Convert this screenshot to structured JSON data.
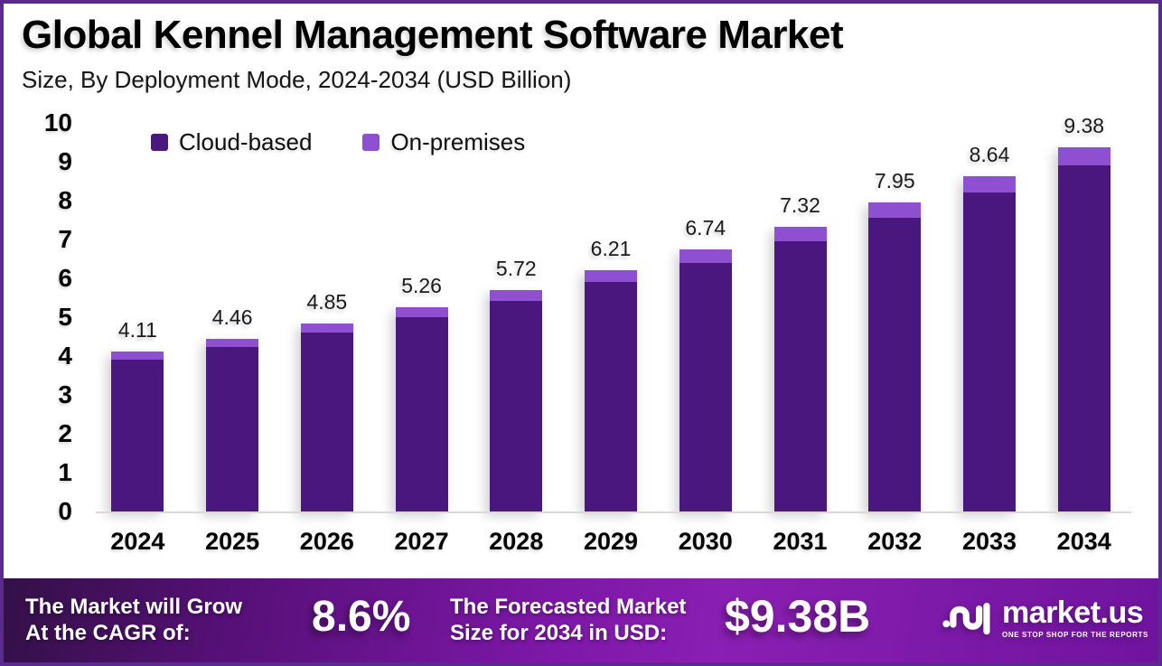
{
  "header": {
    "title": "Global Kennel Management Software Market",
    "subtitle": "Size, By Deployment Mode, 2024-2034 (USD Billion)"
  },
  "chart_data": {
    "type": "bar",
    "stacked": true,
    "title": "Global Kennel Management Software Market",
    "subtitle": "Size, By Deployment Mode, 2024-2034 (USD Billion)",
    "categories": [
      "2024",
      "2025",
      "2026",
      "2027",
      "2028",
      "2029",
      "2030",
      "2031",
      "2032",
      "2033",
      "2034"
    ],
    "series": [
      {
        "name": "Cloud-based",
        "color": "#4A177E",
        "values": [
          3.9,
          4.24,
          4.61,
          5.0,
          5.43,
          5.9,
          6.4,
          6.95,
          7.55,
          8.21,
          8.91
        ]
      },
      {
        "name": "On-premises",
        "color": "#8E4FD0",
        "values": [
          0.21,
          0.22,
          0.24,
          0.26,
          0.29,
          0.31,
          0.34,
          0.37,
          0.4,
          0.43,
          0.47
        ]
      }
    ],
    "totals": [
      4.11,
      4.46,
      4.85,
      5.26,
      5.72,
      6.21,
      6.74,
      7.32,
      7.95,
      8.64,
      9.38
    ],
    "total_labels": [
      "4.11",
      "4.46",
      "4.85",
      "5.26",
      "5.72",
      "6.21",
      "6.74",
      "7.32",
      "7.95",
      "8.64",
      "9.38"
    ],
    "xlabel": "",
    "ylabel": "",
    "ylim": [
      0,
      10
    ],
    "yticks": [
      0,
      1,
      2,
      3,
      4,
      5,
      6,
      7,
      8,
      9,
      10
    ],
    "grid": false,
    "legend_position": "top-left-inside",
    "unit": "USD Billion"
  },
  "footer": {
    "cagr_label_line1": "The Market will Grow",
    "cagr_label_line2": "At the CAGR of:",
    "cagr_value": "8.6%",
    "forecast_label_line1": "The Forecasted Market",
    "forecast_label_line2": "Size for 2034 in USD:",
    "forecast_value": "$9.38B",
    "brand": {
      "name": "market.us",
      "tagline": "ONE STOP SHOP FOR THE REPORTS"
    }
  },
  "colors": {
    "frame_border": "#5B2A90",
    "cloud_based": "#4A177E",
    "on_premises": "#8E4FD0",
    "axis_line": "#D9D9D9",
    "banner_gradient_start": "#331046",
    "banner_gradient_mid": "#8A1FB3",
    "banner_gradient_end": "#6F149E"
  }
}
